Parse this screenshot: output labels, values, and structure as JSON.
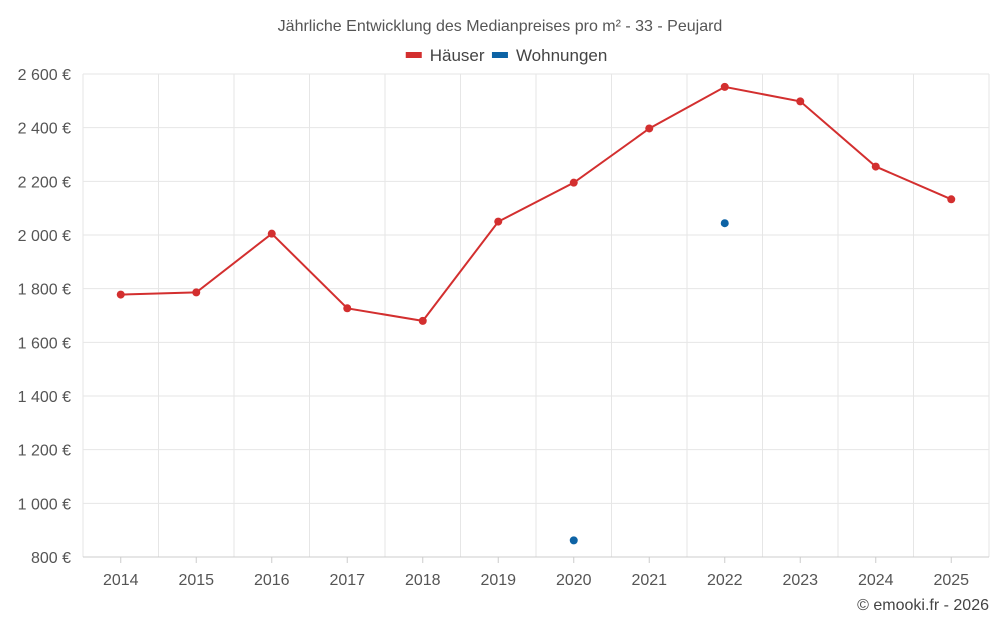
{
  "chart_data": {
    "type": "line",
    "title": "Jährliche Entwicklung des Medianpreises pro m² - 33 - Peujard",
    "categories": [
      "2014",
      "2015",
      "2016",
      "2017",
      "2018",
      "2019",
      "2020",
      "2021",
      "2022",
      "2023",
      "2024",
      "2025"
    ],
    "series": [
      {
        "name": "Häuser",
        "color": "#d32f2f",
        "values": [
          1778,
          1786,
          2005,
          1727,
          1680,
          2050,
          2195,
          2397,
          2552,
          2498,
          2255,
          2133
        ]
      },
      {
        "name": "Wohnungen",
        "color": "#0d63a5",
        "values": [
          null,
          null,
          null,
          null,
          null,
          null,
          862,
          null,
          2044,
          null,
          null,
          null
        ]
      }
    ],
    "ylim": [
      800,
      2600
    ],
    "yticks": [
      800,
      1000,
      1200,
      1400,
      1600,
      1800,
      2000,
      2200,
      2400,
      2600
    ],
    "ytick_labels": [
      "800 €",
      "1 000 €",
      "1 200 €",
      "1 400 €",
      "1 600 €",
      "1 800 €",
      "2 000 €",
      "2 200 €",
      "2 400 €",
      "2 600 €"
    ],
    "legend_position": "top-center",
    "grid": true,
    "xlabel": "",
    "ylabel": ""
  },
  "credit": "© emooki.fr - 2026"
}
